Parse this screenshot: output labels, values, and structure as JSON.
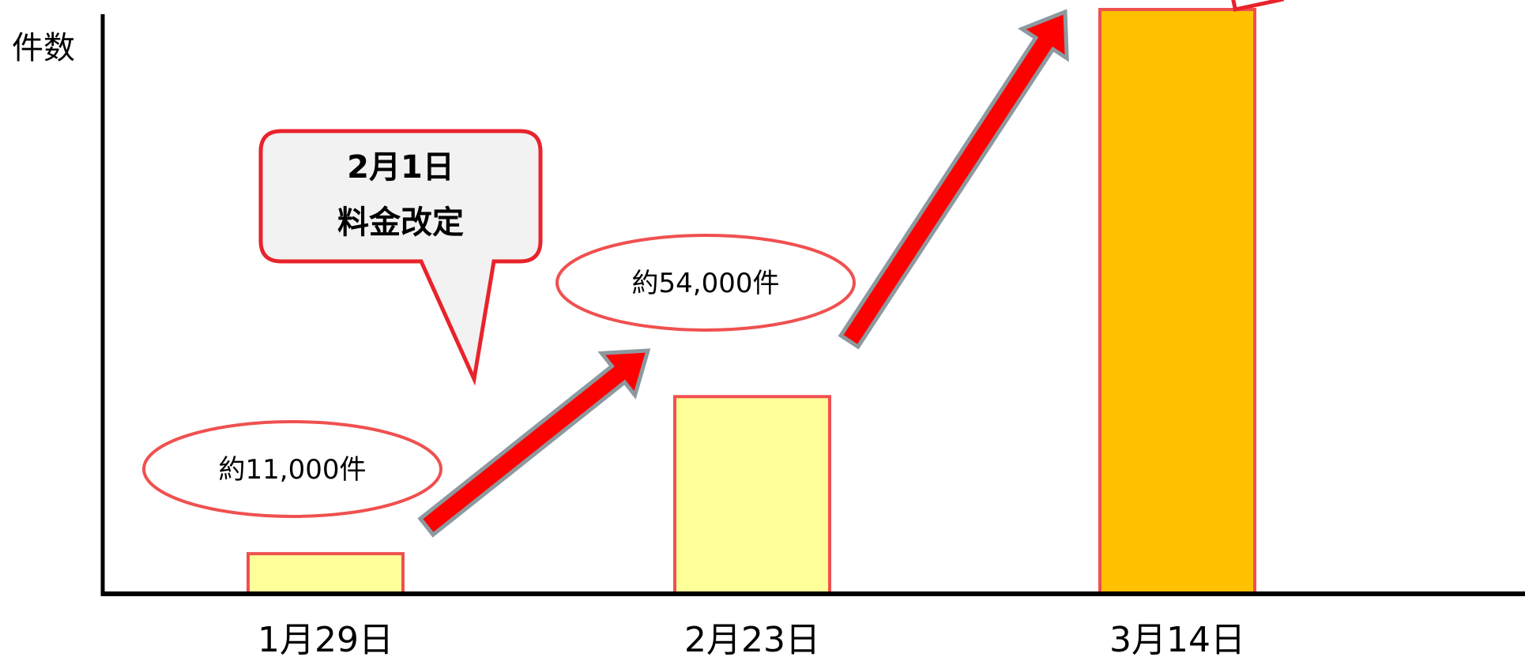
{
  "chart_data": {
    "type": "bar",
    "ylabel": "件数",
    "categories": [
      "1月29日",
      "2月23日",
      "3月14日"
    ],
    "series": [
      {
        "values": [
          11000,
          54000,
          null
        ]
      }
    ],
    "bar_colors": [
      "#ffff99",
      "#ffff99",
      "#ffc000"
    ],
    "bar_border_color": "#f05050",
    "data_labels": [
      "約11,000件",
      "約54,000件"
    ],
    "callout": {
      "line1": "2月1日",
      "line2": "料金改定"
    },
    "arrow_color": "#ff0000",
    "grid": false,
    "y_tick_labels": false
  }
}
